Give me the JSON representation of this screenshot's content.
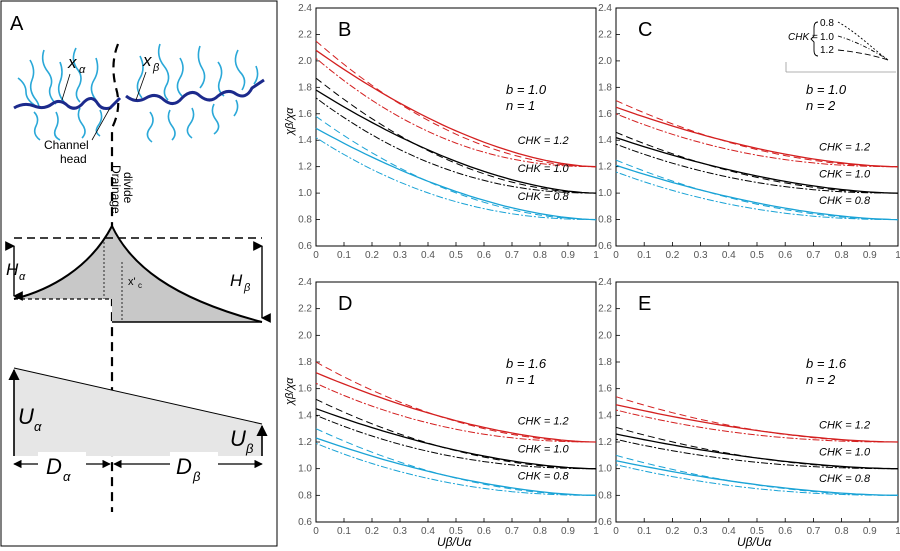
{
  "panel_a": {
    "label": "A",
    "x_alpha": "x",
    "x_alpha_sub": "α",
    "x_beta": "x",
    "x_beta_sub": "β",
    "channel_head": [
      "Channel",
      "head"
    ],
    "drainage_divide": [
      "Drainage",
      "divide"
    ],
    "h_alpha": "H",
    "h_alpha_sub": "α",
    "h_beta": "H",
    "h_beta_sub": "β",
    "x_prime": "x'",
    "x_prime_sub": "c",
    "u_alpha": "U",
    "u_alpha_sub": "α",
    "u_beta": "U",
    "u_beta_sub": "β",
    "d_alpha": "D",
    "d_alpha_sub": "α",
    "d_beta": "D",
    "d_beta_sub": "β"
  },
  "colors": {
    "red": "#d42020",
    "black": "#000000",
    "cyan": "#1aa3d6",
    "river": "#1c2a8c",
    "tributary": "#2aa8d8",
    "fill": "#c8c8c8",
    "fill_light": "#e6e6e6"
  },
  "axis_labels": {
    "ylabel": "χβ/χα",
    "xlabel": "Uβ/Uα"
  },
  "legend_inset": {
    "label": "CHK =",
    "values": [
      "0.8",
      "1.0",
      "1.2"
    ]
  },
  "chart_data": [
    {
      "panel": "B",
      "type": "line",
      "b": "b = 1.0",
      "n": "n = 1",
      "xlim": [
        0,
        1
      ],
      "ylim": [
        0.6,
        2.4
      ],
      "xticks": [
        "0",
        "0.1",
        "0.2",
        "0.3",
        "0.4",
        "0.5",
        "0.6",
        "0.7",
        "0.8",
        "0.9",
        "1"
      ],
      "yticks": [
        "0.6",
        "0.8",
        "1.0",
        "1.2",
        "1.4",
        "1.6",
        "1.8",
        "2.0",
        "2.2",
        "2.4"
      ],
      "series": [
        {
          "name": "CHK = 1.2",
          "label": "CHK = 1.2",
          "color": "red",
          "start": [
            2.08,
            2.15,
            2.02
          ],
          "end": 1.2
        },
        {
          "name": "CHK = 1.0",
          "label": "CHK = 1.0",
          "color": "black",
          "start": [
            1.78,
            1.87,
            1.72
          ],
          "end": 1.0
        },
        {
          "name": "CHK = 0.8",
          "label": "CHK = 0.8",
          "color": "cyan",
          "start": [
            1.49,
            1.58,
            1.42
          ],
          "end": 0.8
        }
      ]
    },
    {
      "panel": "C",
      "type": "line",
      "b": "b = 1.0",
      "n": "n = 2",
      "xlim": [
        0,
        1
      ],
      "ylim": [
        0.6,
        2.4
      ],
      "xticks": [
        "0",
        "0.1",
        "0.2",
        "0.3",
        "0.4",
        "0.5",
        "0.6",
        "0.7",
        "0.8",
        "0.9",
        "1"
      ],
      "yticks": [
        "0.6",
        "0.8",
        "1.0",
        "1.2",
        "1.4",
        "1.6",
        "1.8",
        "2.0",
        "2.2",
        "2.4"
      ],
      "series": [
        {
          "name": "CHK = 1.2",
          "label": "CHK = 1.2",
          "color": "red",
          "start": [
            1.65,
            1.7,
            1.6
          ],
          "end": 1.2
        },
        {
          "name": "CHK = 1.0",
          "label": "CHK = 1.0",
          "color": "black",
          "start": [
            1.42,
            1.46,
            1.37
          ],
          "end": 1.0
        },
        {
          "name": "CHK = 0.8",
          "label": "CHK = 0.8",
          "color": "cyan",
          "start": [
            1.21,
            1.25,
            1.16
          ],
          "end": 0.8
        }
      ]
    },
    {
      "panel": "D",
      "type": "line",
      "b": "b = 1.6",
      "n": "n = 1",
      "xlim": [
        0,
        1
      ],
      "ylim": [
        0.6,
        2.4
      ],
      "xticks": [
        "0",
        "0.1",
        "0.2",
        "0.3",
        "0.4",
        "0.5",
        "0.6",
        "0.7",
        "0.8",
        "0.9",
        "1"
      ],
      "yticks": [
        "0.6",
        "0.8",
        "1.0",
        "1.2",
        "1.4",
        "1.6",
        "1.8",
        "2.0",
        "2.2",
        "2.4"
      ],
      "series": [
        {
          "name": "CHK = 1.2",
          "label": "CHK = 1.2",
          "color": "red",
          "start": [
            1.72,
            1.8,
            1.64
          ],
          "end": 1.2
        },
        {
          "name": "CHK = 1.0",
          "label": "CHK = 1.0",
          "color": "black",
          "start": [
            1.45,
            1.52,
            1.4
          ],
          "end": 1.0
        },
        {
          "name": "CHK = 0.8",
          "label": "CHK = 0.8",
          "color": "cyan",
          "start": [
            1.23,
            1.3,
            1.19
          ],
          "end": 0.8
        }
      ]
    },
    {
      "panel": "E",
      "type": "line",
      "b": "b = 1.6",
      "n": "n = 2",
      "xlim": [
        0,
        1
      ],
      "ylim": [
        0.6,
        2.4
      ],
      "xticks": [
        "0",
        "0.1",
        "0.2",
        "0.3",
        "0.4",
        "0.5",
        "0.6",
        "0.7",
        "0.8",
        "0.9",
        "1"
      ],
      "yticks": [
        "0.6",
        "0.8",
        "1.0",
        "1.2",
        "1.4",
        "1.6",
        "1.8",
        "2.0",
        "2.2",
        "2.4"
      ],
      "series": [
        {
          "name": "CHK = 1.2",
          "label": "CHK = 1.2",
          "color": "red",
          "start": [
            1.48,
            1.54,
            1.44
          ],
          "end": 1.2
        },
        {
          "name": "CHK = 1.0",
          "label": "CHK = 1.0",
          "color": "black",
          "start": [
            1.26,
            1.31,
            1.22
          ],
          "end": 1.0
        },
        {
          "name": "CHK = 0.8",
          "label": "CHK = 0.8",
          "color": "cyan",
          "start": [
            1.06,
            1.1,
            1.03
          ],
          "end": 0.8
        }
      ]
    }
  ]
}
